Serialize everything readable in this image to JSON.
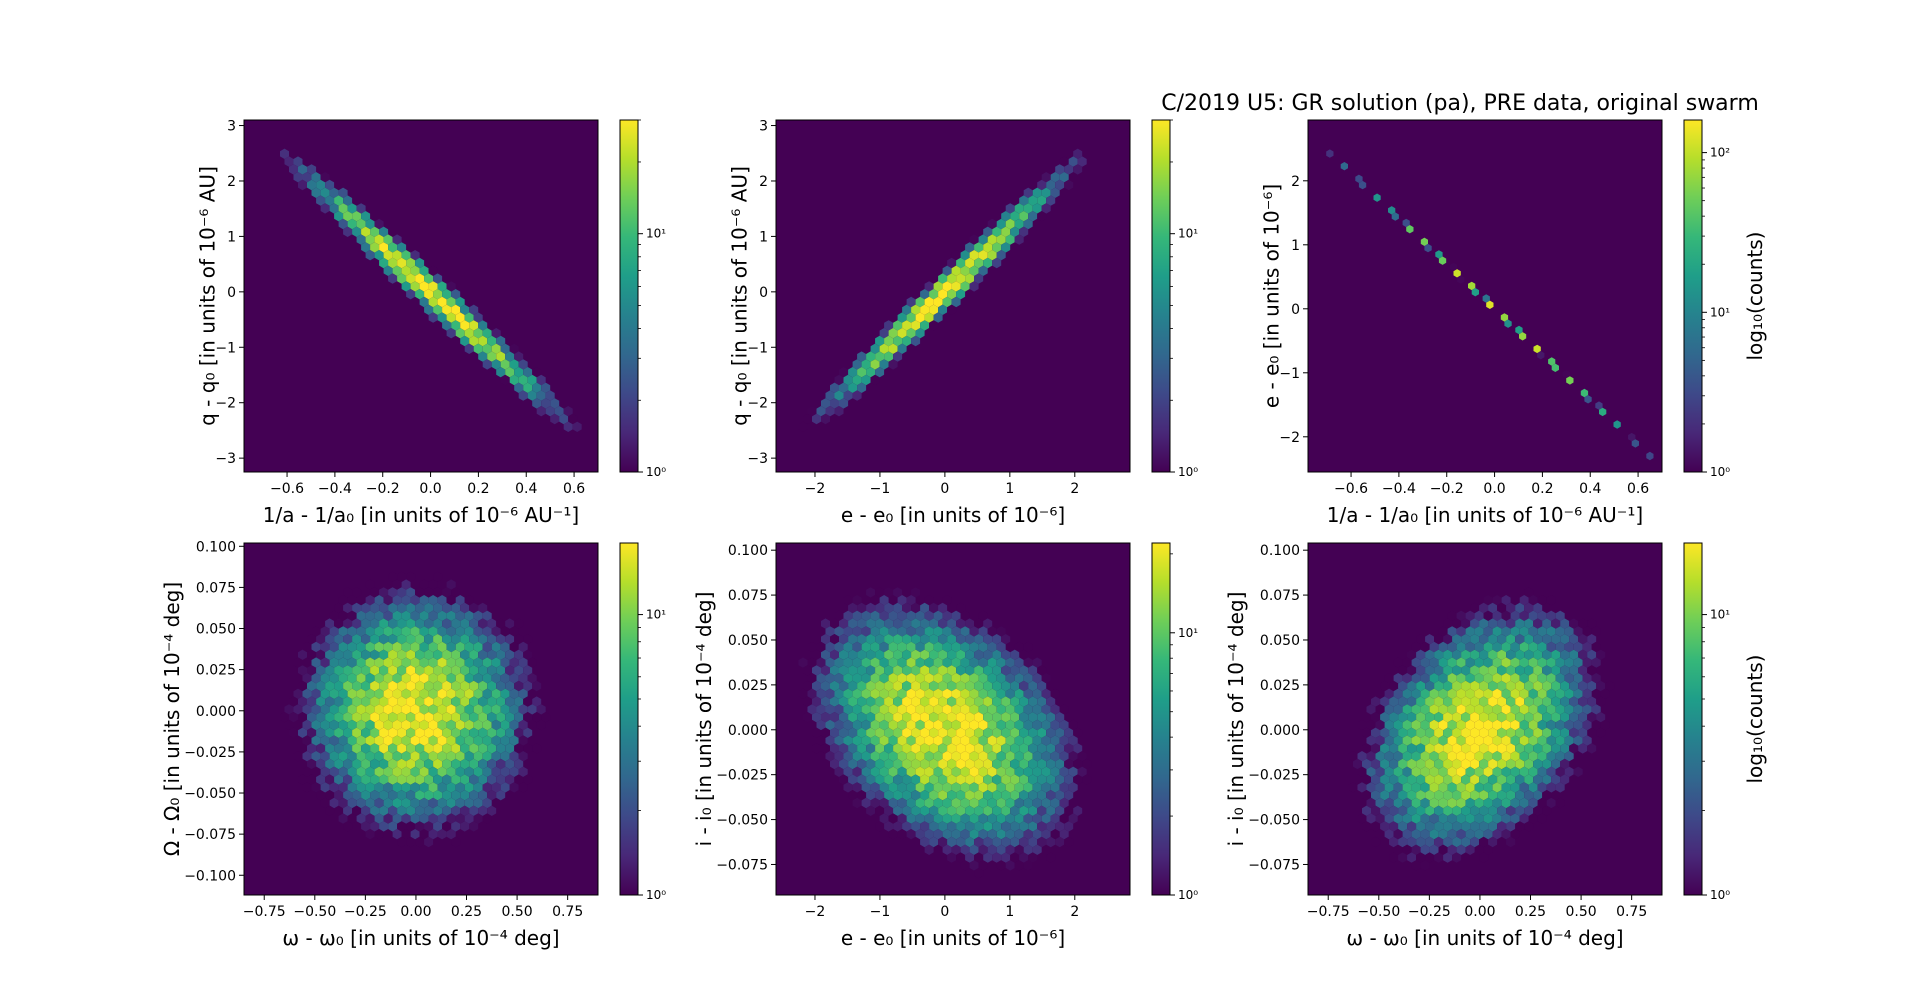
{
  "figure": {
    "title": "C/2019 U5: GR solution (pa), PRE data, original swarm"
  },
  "colors": {
    "background": "#440154",
    "colormap": [
      "#440154",
      "#482878",
      "#3e4989",
      "#31688e",
      "#26828e",
      "#1f9e89",
      "#35b779",
      "#6ece58",
      "#b5de2b",
      "#fde725"
    ]
  },
  "chart_data": [
    {
      "type": "heatmap",
      "subtype": "hexbin",
      "xlabel": "1/a - 1/a₀ [in units of 10⁻⁶ AU⁻¹]",
      "ylabel": "q - q₀ [in units of 10⁻⁶ AU]",
      "xlim": [
        -0.78,
        0.7
      ],
      "ylim": [
        -3.25,
        3.1
      ],
      "xticks": [
        -0.6,
        -0.4,
        -0.2,
        0.0,
        0.2,
        0.4,
        0.6
      ],
      "xtick_labels": [
        "−0.6",
        "−0.4",
        "−0.2",
        "0.0",
        "0.2",
        "0.4",
        "0.6"
      ],
      "yticks": [
        -3,
        -2,
        -1,
        0,
        1,
        2,
        3
      ],
      "ytick_labels": [
        "−3",
        "−2",
        "−1",
        "0",
        "1",
        "2",
        "3"
      ],
      "distribution": {
        "center": [
          0.0,
          0.0
        ],
        "sd": [
          0.24,
          0.98
        ],
        "corr": -0.985,
        "peak_count": 30
      },
      "colorbar": {
        "scale": "log",
        "range": [
          1,
          30
        ],
        "tick_values": [
          1,
          10
        ],
        "tick_labels": [
          "10⁰",
          "10¹"
        ],
        "label": ""
      }
    },
    {
      "type": "heatmap",
      "subtype": "hexbin",
      "xlabel": "e - e₀ [in units of 10⁻⁶]",
      "ylabel": "q - q₀ [in units of 10⁻⁶ AU]",
      "xlim": [
        -2.6,
        2.85
      ],
      "ylim": [
        -3.25,
        3.1
      ],
      "xticks": [
        -2,
        -1,
        0,
        1,
        2
      ],
      "xtick_labels": [
        "−2",
        "−1",
        "0",
        "1",
        "2"
      ],
      "yticks": [
        -3,
        -2,
        -1,
        0,
        1,
        2,
        3
      ],
      "ytick_labels": [
        "−3",
        "−2",
        "−1",
        "0",
        "1",
        "2",
        "3"
      ],
      "distribution": {
        "center": [
          0.0,
          0.0
        ],
        "sd": [
          0.85,
          0.98
        ],
        "corr": 0.985,
        "peak_count": 30
      },
      "colorbar": {
        "scale": "log",
        "range": [
          1,
          30
        ],
        "tick_values": [
          1,
          10
        ],
        "tick_labels": [
          "10⁰",
          "10¹"
        ],
        "label": ""
      }
    },
    {
      "type": "heatmap",
      "subtype": "hexbin",
      "xlabel": "1/a - 1/a₀ [in units of 10⁻⁶ AU⁻¹]",
      "ylabel": "e - e₀ [in units of 10⁻⁶]",
      "xlim": [
        -0.78,
        0.7
      ],
      "ylim": [
        -2.55,
        2.95
      ],
      "xticks": [
        -0.6,
        -0.4,
        -0.2,
        0.0,
        0.2,
        0.4,
        0.6
      ],
      "xtick_labels": [
        "−0.6",
        "−0.4",
        "−0.2",
        "0.0",
        "0.2",
        "0.4",
        "0.6"
      ],
      "yticks": [
        -2,
        -1,
        0,
        1,
        2
      ],
      "ytick_labels": [
        "−2",
        "−1",
        "0",
        "1",
        "2"
      ],
      "distribution": {
        "center": [
          0.0,
          0.0
        ],
        "sd": [
          0.24,
          0.85
        ],
        "corr": -1.0,
        "peak_count": 150
      },
      "colorbar": {
        "scale": "log",
        "range": [
          1,
          160
        ],
        "tick_values": [
          1,
          10,
          100
        ],
        "tick_labels": [
          "10⁰",
          "10¹",
          "10²"
        ],
        "label": "log₁₀(counts)"
      }
    },
    {
      "type": "heatmap",
      "subtype": "hexbin",
      "xlabel": "ω - ω₀ [in units of 10⁻⁴ deg]",
      "ylabel": "Ω - Ω₀ [in units of 10⁻⁴ deg]",
      "xlim": [
        -0.85,
        0.9
      ],
      "ylim": [
        -0.112,
        0.102
      ],
      "xticks": [
        -0.75,
        -0.5,
        -0.25,
        0.0,
        0.25,
        0.5,
        0.75
      ],
      "xtick_labels": [
        "−0.75",
        "−0.50",
        "−0.25",
        "0.00",
        "0.25",
        "0.50",
        "0.75"
      ],
      "yticks": [
        -0.1,
        -0.075,
        -0.05,
        -0.025,
        0.0,
        0.025,
        0.05,
        0.075,
        0.1
      ],
      "ytick_labels": [
        "−0.100",
        "−0.075",
        "−0.050",
        "−0.025",
        "0.000",
        "0.025",
        "0.050",
        "0.075",
        "0.100"
      ],
      "distribution": {
        "center": [
          0.0,
          0.0
        ],
        "sd": [
          0.25,
          0.032
        ],
        "corr": 0.0,
        "peak_count": 18
      },
      "colorbar": {
        "scale": "log",
        "range": [
          1,
          18
        ],
        "tick_values": [
          1,
          10
        ],
        "tick_labels": [
          "10⁰",
          "10¹"
        ],
        "label": ""
      }
    },
    {
      "type": "heatmap",
      "subtype": "hexbin",
      "xlabel": "e - e₀ [in units of 10⁻⁶]",
      "ylabel": "i - i₀ [in units of 10⁻⁴ deg]",
      "xlim": [
        -2.6,
        2.85
      ],
      "ylim": [
        -0.092,
        0.104
      ],
      "xticks": [
        -2,
        -1,
        0,
        1,
        2
      ],
      "xtick_labels": [
        "−2",
        "−1",
        "0",
        "1",
        "2"
      ],
      "yticks": [
        -0.075,
        -0.05,
        -0.025,
        0.0,
        0.025,
        0.05,
        0.075,
        0.1
      ],
      "ytick_labels": [
        "−0.075",
        "−0.050",
        "−0.025",
        "0.000",
        "0.025",
        "0.050",
        "0.075",
        "0.100"
      ],
      "distribution": {
        "center": [
          0.0,
          0.0
        ],
        "sd": [
          0.85,
          0.03
        ],
        "corr": -0.35,
        "peak_count": 22
      },
      "colorbar": {
        "scale": "log",
        "range": [
          1,
          22
        ],
        "tick_values": [
          1,
          10
        ],
        "tick_labels": [
          "10⁰",
          "10¹"
        ],
        "label": ""
      }
    },
    {
      "type": "heatmap",
      "subtype": "hexbin",
      "xlabel": "ω - ω₀ [in units of 10⁻⁴ deg]",
      "ylabel": "i - i₀ [in units of 10⁻⁴ deg]",
      "xlim": [
        -0.85,
        0.9
      ],
      "ylim": [
        -0.092,
        0.104
      ],
      "xticks": [
        -0.75,
        -0.5,
        -0.25,
        0.0,
        0.25,
        0.5,
        0.75
      ],
      "xtick_labels": [
        "−0.75",
        "−0.50",
        "−0.25",
        "0.00",
        "0.25",
        "0.50",
        "0.75"
      ],
      "yticks": [
        -0.075,
        -0.05,
        -0.025,
        0.0,
        0.025,
        0.05,
        0.075,
        0.1
      ],
      "ytick_labels": [
        "−0.075",
        "−0.050",
        "−0.025",
        "0.000",
        "0.025",
        "0.050",
        "0.075",
        "0.100"
      ],
      "distribution": {
        "center": [
          0.0,
          0.0
        ],
        "sd": [
          0.25,
          0.03
        ],
        "corr": 0.35,
        "peak_count": 18
      },
      "colorbar": {
        "scale": "log",
        "range": [
          1,
          18
        ],
        "tick_values": [
          1,
          10
        ],
        "tick_labels": [
          "10⁰",
          "10¹"
        ],
        "label": "log₁₀(counts)"
      }
    }
  ]
}
